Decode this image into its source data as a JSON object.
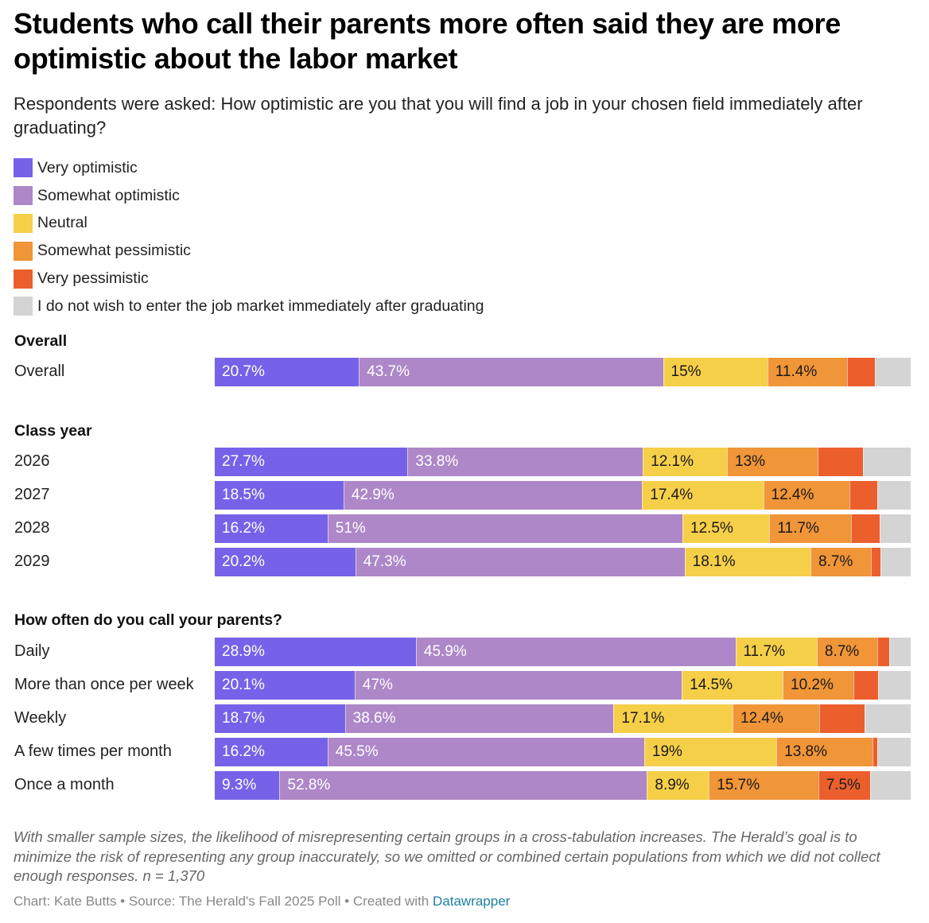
{
  "title": "Students who call their parents more often said they are more optimistic about the labor market",
  "subtitle": "Respondents were asked: How optimistic are you that you will find a job in your chosen field immediately after graduating?",
  "legend": [
    {
      "label": "Very optimistic",
      "color": "#7662e8"
    },
    {
      "label": "Somewhat optimistic",
      "color": "#ad87c8"
    },
    {
      "label": "Neutral",
      "color": "#f6cf49"
    },
    {
      "label": "Somewhat pessimistic",
      "color": "#f09538"
    },
    {
      "label": "Very pessimistic",
      "color": "#ec5f2d"
    },
    {
      "label": "I do not wish to enter the job market immediately after graduating",
      "color": "#d4d4d4"
    }
  ],
  "chart_data": {
    "type": "bar",
    "orientation": "horizontal",
    "stacked": true,
    "unit": "%",
    "title": "Students who call their parents more often said they are more optimistic about the labor market",
    "xlim": [
      0,
      100
    ],
    "series_names": [
      "Very optimistic",
      "Somewhat optimistic",
      "Neutral",
      "Somewhat pessimistic",
      "Very pessimistic",
      "I do not wish to enter the job market immediately after graduating"
    ],
    "groups": [
      {
        "name": "Overall",
        "rows": [
          {
            "label": "Overall",
            "values": [
              20.7,
              43.7,
              15,
              11.4,
              4,
              5.2
            ],
            "labels": [
              "20.7%",
              "43.7%",
              "15%",
              "11.4%",
              "",
              ""
            ]
          }
        ]
      },
      {
        "name": "Class year",
        "rows": [
          {
            "label": "2026",
            "values": [
              27.7,
              33.8,
              12.1,
              13,
              6.5,
              6.9
            ],
            "labels": [
              "27.7%",
              "33.8%",
              "12.1%",
              "13%",
              "",
              ""
            ]
          },
          {
            "label": "2027",
            "values": [
              18.5,
              42.9,
              17.4,
              12.4,
              4,
              4.8
            ],
            "labels": [
              "18.5%",
              "42.9%",
              "17.4%",
              "12.4%",
              "",
              ""
            ]
          },
          {
            "label": "2028",
            "values": [
              16.2,
              51,
              12.5,
              11.7,
              4.2,
              4.4
            ],
            "labels": [
              "16.2%",
              "51%",
              "12.5%",
              "11.7%",
              "",
              ""
            ]
          },
          {
            "label": "2029",
            "values": [
              20.2,
              47.3,
              18.1,
              8.7,
              1.4,
              4.3
            ],
            "labels": [
              "20.2%",
              "47.3%",
              "18.1%",
              "8.7%",
              "",
              ""
            ]
          }
        ]
      },
      {
        "name": "How often do you call your parents?",
        "rows": [
          {
            "label": "Daily",
            "values": [
              28.9,
              45.9,
              11.7,
              8.7,
              1.7,
              3.1
            ],
            "labels": [
              "28.9%",
              "45.9%",
              "11.7%",
              "8.7%",
              "",
              ""
            ]
          },
          {
            "label": "More than once per week",
            "values": [
              20.1,
              47,
              14.5,
              10.2,
              3.5,
              4.7
            ],
            "labels": [
              "20.1%",
              "47%",
              "14.5%",
              "10.2%",
              "",
              ""
            ]
          },
          {
            "label": "Weekly",
            "values": [
              18.7,
              38.6,
              17.1,
              12.4,
              6.6,
              6.6
            ],
            "labels": [
              "18.7%",
              "38.6%",
              "17.1%",
              "12.4%",
              "",
              ""
            ]
          },
          {
            "label": "A few times per month",
            "values": [
              16.2,
              45.5,
              19,
              13.8,
              0.7,
              4.8
            ],
            "labels": [
              "16.2%",
              "45.5%",
              "19%",
              "13.8%",
              "",
              ""
            ]
          },
          {
            "label": "Once a month",
            "values": [
              9.3,
              52.8,
              8.9,
              15.7,
              7.5,
              5.8
            ],
            "labels": [
              "9.3%",
              "52.8%",
              "8.9%",
              "15.7%",
              "7.5%",
              ""
            ]
          }
        ]
      }
    ]
  },
  "notes": "With smaller sample sizes, the likelihood of misrepresenting certain groups in a cross-tabulation increases. The Herald’s goal is to minimize the risk of representing any group inaccurately, so we omitted or combined certain populations from which we did not collect enough responses. n = 1,370",
  "credit": {
    "text": "Chart: Kate Butts • Source: The Herald's Fall 2025 Poll • Created with ",
    "link": "Datawrapper"
  }
}
